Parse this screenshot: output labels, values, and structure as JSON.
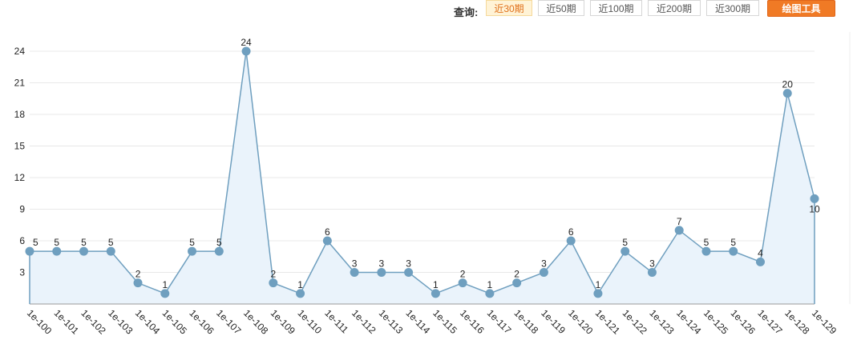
{
  "query": {
    "label": "查询:",
    "buttons": [
      {
        "label": "近30期",
        "active": true
      },
      {
        "label": "近50期",
        "active": false
      },
      {
        "label": "近100期",
        "active": false
      },
      {
        "label": "近200期",
        "active": false
      },
      {
        "label": "近300期",
        "active": false
      }
    ],
    "tool_button": "绘图工具"
  },
  "colors": {
    "line": "#6f9fbf",
    "point": "#6f9fbf",
    "area": "#eaf3fb",
    "grid": "#e8e8e8",
    "active_tab": "#e0701a",
    "tool_button": "#f07a25"
  },
  "chart_data": {
    "type": "area",
    "categories": [
      "1e-100",
      "1e-101",
      "1e-102",
      "1e-103",
      "1e-104",
      "1e-105",
      "1e-106",
      "1e-107",
      "1e-108",
      "1e-109",
      "1e-110",
      "1e-111",
      "1e-112",
      "1e-113",
      "1e-114",
      "1e-115",
      "1e-116",
      "1e-117",
      "1e-118",
      "1e-119",
      "1e-120",
      "1e-121",
      "1e-122",
      "1e-123",
      "1e-124",
      "1e-125",
      "1e-126",
      "1e-127",
      "1e-128",
      "1e-129"
    ],
    "values": [
      5,
      5,
      5,
      5,
      2,
      1,
      5,
      5,
      24,
      2,
      1,
      6,
      3,
      3,
      3,
      1,
      2,
      1,
      2,
      3,
      6,
      1,
      5,
      3,
      7,
      5,
      5,
      4,
      20,
      10
    ],
    "y_ticks": [
      3,
      6,
      9,
      12,
      15,
      18,
      21,
      24
    ],
    "ylim": [
      0,
      24
    ],
    "grid": true,
    "data_labels": true,
    "title": "",
    "xlabel": "",
    "ylabel": ""
  }
}
